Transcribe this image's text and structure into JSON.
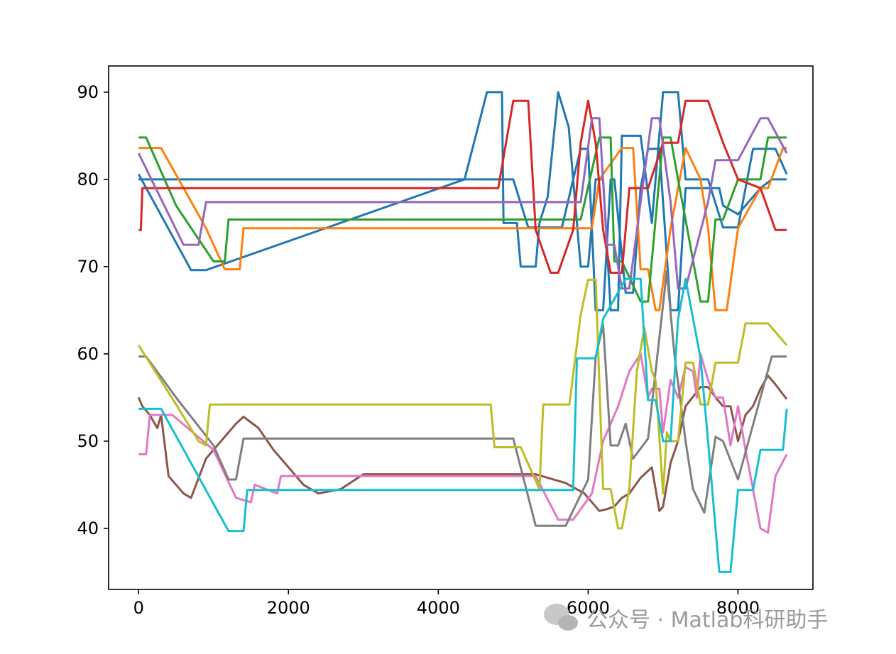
{
  "chart_data": {
    "type": "line",
    "title": "",
    "xlabel": "",
    "ylabel": "",
    "xlim": [
      -400,
      9000
    ],
    "ylim": [
      33,
      93
    ],
    "xticks": [
      0,
      2000,
      4000,
      6000,
      8000
    ],
    "yticks": [
      40,
      50,
      60,
      70,
      80,
      90
    ],
    "legend": "none",
    "grid": false,
    "series": [
      {
        "color": "#1f77b4",
        "x": [
          0,
          700,
          900,
          4350,
          4650,
          4850,
          4870,
          5050,
          5100,
          5300,
          5350,
          5460,
          5600,
          5740,
          5800,
          5900,
          6000,
          6100,
          6200,
          6300,
          6400,
          6450,
          6700,
          6850,
          7000,
          7200,
          7300,
          7600,
          7800,
          8000,
          8200,
          8300,
          8500,
          8650
        ],
        "y": [
          80.6,
          69.6,
          69.6,
          80,
          90,
          90,
          75,
          75,
          70,
          70,
          75,
          78,
          90,
          86,
          80,
          70,
          70,
          80,
          80,
          65,
          65,
          85,
          85,
          75,
          90,
          90,
          80,
          80,
          74.5,
          74.5,
          83.5,
          83.5,
          83.5,
          80.6
        ]
      },
      {
        "color": "#1f77b4",
        "x": [
          0,
          750,
          950,
          4600,
          4800,
          5000,
          5200,
          5450,
          5650,
          5800,
          5900,
          6000,
          6100,
          6200,
          6300,
          6350,
          6500,
          6600,
          6700,
          6800,
          6950,
          7100,
          7200,
          7300,
          7600,
          7750,
          7800,
          8000,
          8300,
          8450,
          8650
        ],
        "y": [
          80,
          80,
          80,
          80,
          80,
          80,
          74.5,
          74.5,
          74.5,
          80,
          83.5,
          83.5,
          65,
          65,
          80,
          80,
          67,
          67,
          79,
          83.5,
          83.5,
          65,
          65,
          79,
          79,
          79,
          77,
          76,
          79,
          80,
          80
        ]
      },
      {
        "color": "#ff7f0e",
        "x": [
          0,
          300,
          900,
          1150,
          1350,
          1400,
          5750,
          5950,
          6050,
          6150,
          6450,
          6600,
          6700,
          6800,
          6900,
          6950,
          7100,
          7300,
          7500,
          7600,
          7700,
          7850,
          8000,
          8300,
          8400,
          8600,
          8650
        ],
        "y": [
          83.6,
          83.6,
          74.4,
          69.7,
          69.7,
          74.4,
          74.4,
          74.4,
          74.4,
          80,
          83.6,
          83.6,
          69.7,
          69.7,
          65,
          65,
          74.4,
          83.6,
          80,
          74.4,
          65,
          65,
          74.4,
          79,
          79,
          83.6,
          83.6
        ]
      },
      {
        "color": "#2ca02c",
        "x": [
          0,
          100,
          500,
          1000,
          1150,
          1200,
          5800,
          5900,
          6150,
          6300,
          6350,
          6450,
          6700,
          6800,
          6900,
          7000,
          7100,
          7200,
          7300,
          7500,
          7600,
          7700,
          7800,
          8000,
          8300,
          8400,
          8650
        ],
        "y": [
          84.8,
          84.8,
          77,
          70.6,
          70.6,
          75.4,
          75.4,
          75.4,
          84.8,
          84.8,
          70.6,
          70.6,
          66,
          66,
          75.4,
          84.8,
          84.8,
          80,
          75.4,
          66,
          66,
          75.4,
          75.4,
          80,
          80,
          84.8,
          84.8
        ]
      },
      {
        "color": "#d62728",
        "x": [
          0,
          30,
          50,
          1200,
          4700,
          4800,
          5000,
          5200,
          5300,
          5500,
          5600,
          5800,
          5900,
          6000,
          6100,
          6200,
          6300,
          6450,
          6550,
          6650,
          6800,
          7000,
          7200,
          7300,
          7600,
          7800,
          8000,
          8300,
          8500,
          8650
        ],
        "y": [
          74.2,
          74.2,
          79,
          79,
          79,
          79,
          89,
          89,
          74.2,
          69.3,
          69.3,
          74.2,
          84.2,
          89,
          84.2,
          74.2,
          69.3,
          69.3,
          79,
          79,
          79,
          84.2,
          84.2,
          89,
          89,
          84.2,
          80,
          79,
          74.2,
          74.2
        ]
      },
      {
        "color": "#9467bd",
        "x": [
          0,
          600,
          800,
          900,
          5600,
          5900,
          6050,
          6150,
          6250,
          6350,
          6450,
          6550,
          6700,
          6850,
          6950,
          7100,
          7200,
          7300,
          7600,
          7700,
          7900,
          8000,
          8300,
          8400,
          8650
        ],
        "y": [
          83,
          72.5,
          72.5,
          77.4,
          77.4,
          77.4,
          87,
          87,
          72.5,
          72.5,
          67.5,
          67.5,
          77.4,
          87,
          87,
          77.4,
          67.5,
          67.5,
          77.4,
          82.2,
          82.2,
          82.2,
          87,
          87,
          83
        ]
      },
      {
        "color": "#8c564b",
        "x": [
          0,
          50,
          150,
          250,
          300,
          400,
          600,
          700,
          900,
          1300,
          1400,
          1600,
          1800,
          2200,
          2400,
          2700,
          3000,
          4500,
          5300,
          5700,
          5950,
          6150,
          6250,
          6350,
          6450,
          6550,
          6700,
          6850,
          6950,
          7000,
          7100,
          7200,
          7300,
          7500,
          7600,
          7700,
          7800,
          7900,
          8000,
          8100,
          8200,
          8300,
          8400,
          8500,
          8650
        ],
        "y": [
          55,
          54,
          53,
          51.5,
          53,
          46,
          44,
          43.5,
          48,
          52,
          52.8,
          51.5,
          49,
          45,
          44,
          44.5,
          46.2,
          46.2,
          46.2,
          45.2,
          44,
          42,
          42.2,
          42.5,
          43.5,
          44,
          45.8,
          47,
          42,
          42.5,
          47.5,
          50,
          54,
          56.2,
          56.2,
          55,
          54,
          54,
          50,
          53,
          54,
          56,
          57.5,
          56.5,
          54.8
        ]
      },
      {
        "color": "#e377c2",
        "x": [
          0,
          100,
          150,
          450,
          1000,
          1300,
          1500,
          1550,
          1850,
          1900,
          4700,
          5300,
          5600,
          5800,
          6050,
          6200,
          6400,
          6550,
          6700,
          6800,
          6850,
          6950,
          7000,
          7100,
          7200,
          7300,
          7400,
          7450,
          7500,
          7600,
          7700,
          7800,
          7900,
          8000,
          8100,
          8300,
          8400,
          8500,
          8650
        ],
        "y": [
          48.5,
          48.5,
          53,
          53,
          49,
          43.5,
          43,
          45,
          44,
          46,
          46,
          46,
          41,
          41,
          44,
          50,
          54,
          58,
          60,
          55,
          56,
          56,
          51,
          57,
          55,
          58.5,
          58,
          55,
          60,
          57,
          55,
          55,
          49.5,
          54,
          49,
          40,
          39.5,
          46,
          48.5
        ]
      },
      {
        "color": "#7f7f7f",
        "x": [
          0,
          100,
          500,
          1000,
          1200,
          1300,
          1400,
          4700,
          5000,
          5300,
          5400,
          5700,
          6000,
          6100,
          6200,
          6300,
          6400,
          6500,
          6600,
          6800,
          7050,
          7150,
          7300,
          7400,
          7550,
          7700,
          7800,
          8000,
          8300,
          8450,
          8650
        ],
        "y": [
          59.7,
          59.7,
          55,
          49.5,
          45.6,
          45.6,
          50.3,
          50.3,
          50.3,
          40.3,
          40.3,
          40.3,
          45.6,
          59.7,
          63.3,
          49.5,
          49.5,
          52,
          48,
          50.3,
          69.5,
          60,
          50,
          44.5,
          41.8,
          50.5,
          50,
          45.6,
          55,
          59.7,
          59.7
        ]
      },
      {
        "color": "#bcbd22",
        "x": [
          0,
          500,
          800,
          900,
          950,
          4650,
          4700,
          4750,
          5100,
          5350,
          5400,
          5500,
          5750,
          5900,
          6000,
          6100,
          6200,
          6300,
          6400,
          6450,
          6550,
          6650,
          6750,
          6850,
          6900,
          7000,
          7050,
          7100,
          7200,
          7300,
          7400,
          7500,
          7600,
          7700,
          7800,
          8000,
          8100,
          8300,
          8400,
          8650
        ],
        "y": [
          61,
          54.2,
          50,
          49.5,
          54.2,
          54.2,
          54.2,
          49.3,
          49.3,
          44.5,
          54.2,
          54.2,
          54.2,
          64.5,
          68.5,
          68.5,
          44.5,
          44.5,
          40,
          40,
          44.5,
          58,
          63,
          58,
          57,
          44,
          51,
          50,
          50,
          59,
          59,
          54.2,
          54.2,
          59,
          59,
          59,
          63.5,
          63.5,
          63.5,
          61
        ]
      },
      {
        "color": "#17becf",
        "x": [
          0,
          300,
          1200,
          1400,
          1450,
          3000,
          5800,
          5850,
          6100,
          6200,
          6500,
          6700,
          6800,
          6900,
          7000,
          7100,
          7200,
          7300,
          7500,
          7600,
          7750,
          7900,
          8000,
          8200,
          8300,
          8600,
          8650
        ],
        "y": [
          53.7,
          53.7,
          39.7,
          39.7,
          44.4,
          44.4,
          44.4,
          59.5,
          59.5,
          64,
          68.6,
          68.6,
          54.7,
          54.7,
          50,
          50,
          64,
          68.6,
          59.5,
          50,
          35,
          35,
          44.4,
          44.4,
          49,
          49,
          53.7
        ]
      }
    ]
  },
  "watermark": {
    "text": "公众号 · Matlab科研助手",
    "icon": "wechat-icon"
  }
}
